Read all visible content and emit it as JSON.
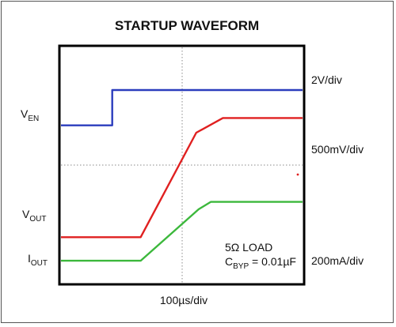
{
  "chart_data": {
    "type": "line",
    "title": "STARTUP WAVEFORM",
    "x_scale_label": "100µs/div",
    "x_range_div": [
      0,
      10
    ],
    "y_range_div": [
      0,
      8
    ],
    "grid": "center crosshair, dotted",
    "series": [
      {
        "name": "EN",
        "name_sub": "",
        "name_prefix": "V",
        "name_subscript": "EN",
        "scale_label": "2V/div",
        "color": "#2b3dbd",
        "points": [
          [
            0,
            5.35
          ],
          [
            2.12,
            5.35
          ],
          [
            2.12,
            6.55
          ],
          [
            10,
            6.55
          ]
        ]
      },
      {
        "name": "OUT",
        "name_prefix": "V",
        "name_subscript": "OUT",
        "scale_label": "500mV/div",
        "color": "#e02020",
        "points": [
          [
            0,
            1.55
          ],
          [
            3.3,
            1.55
          ],
          [
            5.6,
            5.1
          ],
          [
            6.7,
            5.6
          ],
          [
            10,
            5.6
          ]
        ]
      },
      {
        "name": "OUT_I",
        "name_prefix": "I",
        "name_subscript": "OUT",
        "scale_label": "200mA/div",
        "color": "#3cb83c",
        "points": [
          [
            0,
            0.75
          ],
          [
            3.3,
            0.75
          ],
          [
            5.7,
            2.5
          ],
          [
            6.2,
            2.75
          ],
          [
            10,
            2.75
          ]
        ]
      }
    ],
    "annotations": {
      "load_line": "5Ω LOAD",
      "cbyp_prefix": "C",
      "cbyp_subscript": "BYP",
      "cbyp_value": " = 0.01µF"
    }
  }
}
